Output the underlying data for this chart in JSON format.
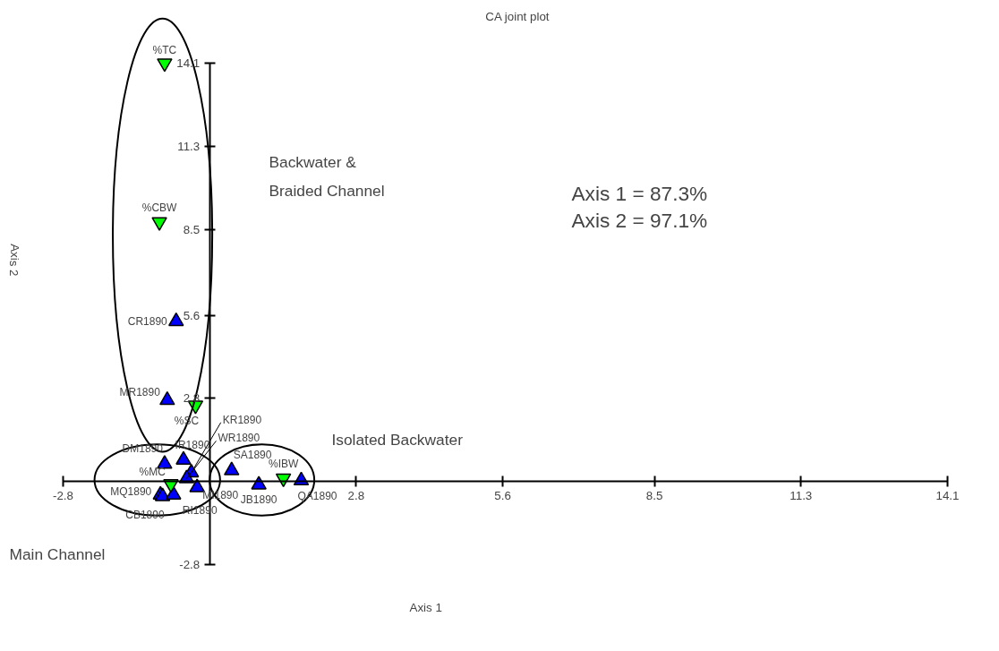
{
  "chart_data": {
    "type": "scatter",
    "title": "CA joint plot",
    "xlabel": "Axis 1",
    "ylabel": "Axis 2",
    "xlim": [
      -2.8,
      14.1
    ],
    "ylim": [
      -2.8,
      14.1
    ],
    "xticks": [
      -2.8,
      2.8,
      5.6,
      8.5,
      11.3,
      14.1
    ],
    "yticks": [
      -2.8,
      2.8,
      5.6,
      8.5,
      11.3,
      14.1
    ],
    "grid": false,
    "legend": false,
    "marker": "triangle",
    "series": [
      {
        "color": "#0000ff",
        "x": [
          -0.64,
          -0.81,
          -0.86,
          -0.5,
          -0.35,
          -0.44,
          -0.24,
          -0.94,
          -0.9,
          -0.69,
          0.42,
          0.94,
          1.75
        ],
        "values": [
          5.4,
          2.74,
          0.59,
          0.73,
          0.3,
          0.1,
          -0.2,
          -0.45,
          -0.5,
          -0.45,
          0.37,
          -0.11,
          0.03
        ]
      },
      {
        "color": "#00ff00",
        "marker": "triangle_down",
        "x": [
          -0.86,
          -0.96,
          -0.27,
          -0.74,
          1.41
        ],
        "values": [
          14.1,
          8.75,
          2.57,
          -0.08,
          0.11
        ]
      }
    ],
    "annotations": [
      {
        "text": "CR1890",
        "x": -0.64,
        "y": 5.4
      },
      {
        "text": "MR1890",
        "x": -0.81,
        "y": 2.74
      },
      {
        "text": "DM1890",
        "x": -0.86,
        "y": 0.59
      },
      {
        "text": "IR1890",
        "x": -0.5,
        "y": 0.73
      },
      {
        "text": "KR1890",
        "x": -0.35,
        "y": 0.3
      },
      {
        "text": "WR1890",
        "x": -0.44,
        "y": 0.1
      },
      {
        "text": "MI1890",
        "x": -0.24,
        "y": -0.2
      },
      {
        "text": "MQ1890",
        "x": -0.94,
        "y": -0.45
      },
      {
        "text": "CB1890",
        "x": -0.9,
        "y": -0.5
      },
      {
        "text": "RI1890",
        "x": -0.69,
        "y": -0.45
      },
      {
        "text": "SA1890",
        "x": 0.42,
        "y": 0.37
      },
      {
        "text": "JB1890",
        "x": 0.94,
        "y": -0.11
      },
      {
        "text": "QA1890",
        "x": 1.75,
        "y": 0.03
      },
      {
        "text": "%TC",
        "x": -0.86,
        "y": 14.1
      },
      {
        "text": "%CBW",
        "x": -0.96,
        "y": 8.75
      },
      {
        "text": "%SC",
        "x": -0.27,
        "y": 2.57
      },
      {
        "text": "%MC",
        "x": -0.74,
        "y": -0.08
      },
      {
        "text": "%IBW",
        "x": 1.41,
        "y": 0.11
      },
      "Backwater &",
      "Braided Channel",
      "Isolated Backwater",
      "Main Channel",
      "Axis 1 = 87.3%",
      "Axis 2 = 97.1%"
    ]
  }
}
